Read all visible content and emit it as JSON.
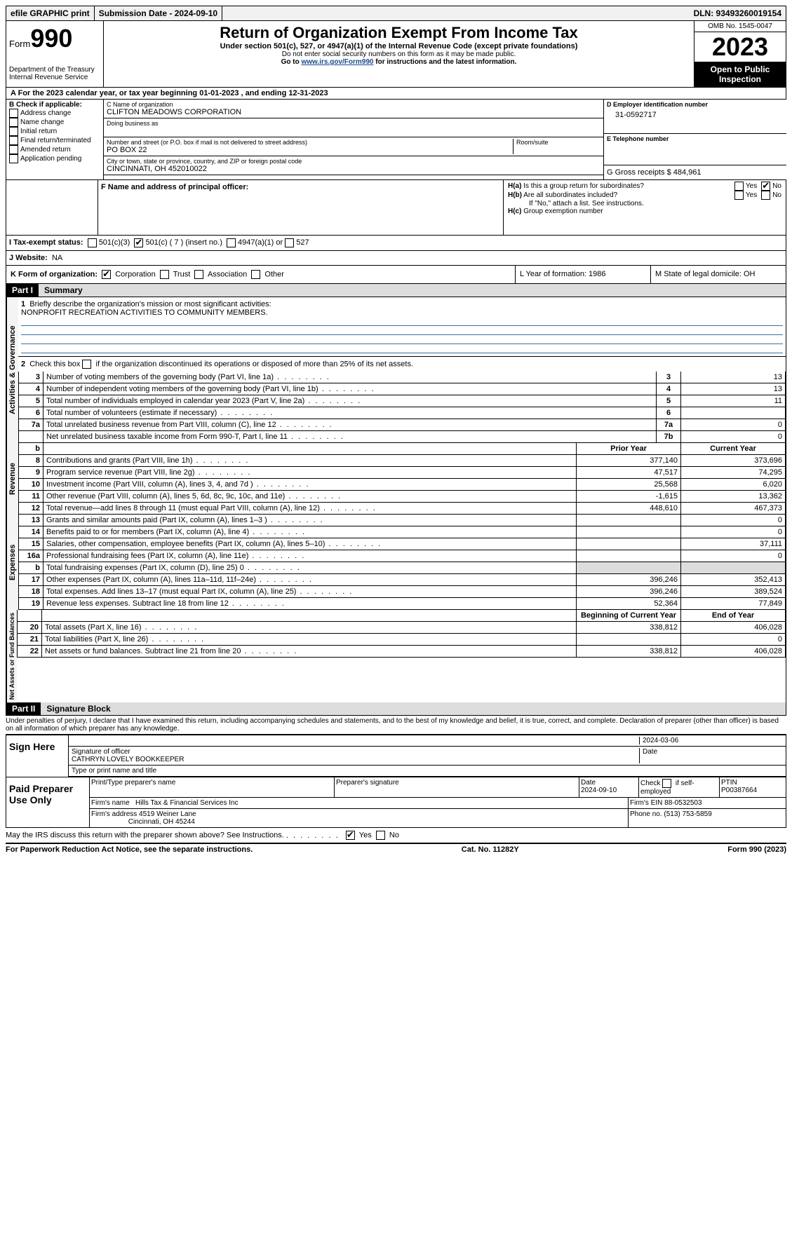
{
  "topbar": {
    "efile": "efile GRAPHIC print",
    "submission_label": "Submission Date - 2024-09-10",
    "dln_label": "DLN: 93493260019154"
  },
  "header": {
    "form_word": "Form",
    "form_num": "990",
    "dept": "Department of the Treasury",
    "irs": "Internal Revenue Service",
    "title": "Return of Organization Exempt From Income Tax",
    "sub1": "Under section 501(c), 527, or 4947(a)(1) of the Internal Revenue Code (except private foundations)",
    "sub2": "Do not enter social security numbers on this form as it may be made public.",
    "sub3_pre": "Go to ",
    "sub3_link": "www.irs.gov/Form990",
    "sub3_post": " for instructions and the latest information.",
    "omb": "OMB No. 1545-0047",
    "year": "2023",
    "open": "Open to Public Inspection"
  },
  "line_a": "For the 2023 calendar year, or tax year beginning 01-01-2023   , and ending 12-31-2023",
  "box_b": {
    "label": "B Check if applicable:",
    "opts": [
      "Address change",
      "Name change",
      "Initial return",
      "Final return/terminated",
      "Amended return",
      "Application pending"
    ]
  },
  "box_c": {
    "name_label": "C Name of organization",
    "name": "CLIFTON MEADOWS CORPORATION",
    "dba_label": "Doing business as",
    "addr_label": "Number and street (or P.O. box if mail is not delivered to street address)",
    "room_label": "Room/suite",
    "addr": "PO BOX 22",
    "city_label": "City or town, state or province, country, and ZIP or foreign postal code",
    "city": "CINCINNATI, OH  452010022"
  },
  "box_d": {
    "label": "D Employer identification number",
    "val": "31-0592717"
  },
  "box_e": {
    "label": "E Telephone number",
    "val": ""
  },
  "box_g": {
    "label": "G Gross receipts $ 484,961"
  },
  "box_f": {
    "label": "F  Name and address of principal officer:"
  },
  "box_h": {
    "a_label": "H(a)  Is this a group return for subordinates?",
    "b_label": "H(b)  Are all subordinates included?",
    "b_note": "If \"No,\" attach a list. See instructions.",
    "c_label": "H(c)  Group exemption number",
    "yes": "Yes",
    "no": "No"
  },
  "box_i": {
    "label": "I   Tax-exempt status:",
    "o1": "501(c)(3)",
    "o2": "501(c) ( 7 ) (insert no.)",
    "o3": "4947(a)(1) or",
    "o4": "527"
  },
  "box_j": {
    "label": "J   Website:",
    "val": "NA"
  },
  "box_k": {
    "label": "K Form of organization:",
    "o1": "Corporation",
    "o2": "Trust",
    "o3": "Association",
    "o4": "Other"
  },
  "box_l": {
    "label": "L Year of formation: 1986"
  },
  "box_m": {
    "label": "M State of legal domicile: OH"
  },
  "part1": {
    "num": "Part I",
    "title": "Summary"
  },
  "summary": {
    "l1_label": "Briefly describe the organization's mission or most significant activities:",
    "l1_text": "NONPROFIT RECREATION ACTIVITIES TO COMMUNITY MEMBERS.",
    "l2": "Check this box         if the organization discontinued its operations or disposed of more than 25% of its net assets.",
    "rows_gov": [
      {
        "n": "3",
        "d": "Number of voting members of the governing body (Part VI, line 1a)",
        "b": "3",
        "v": "13"
      },
      {
        "n": "4",
        "d": "Number of independent voting members of the governing body (Part VI, line 1b)",
        "b": "4",
        "v": "13"
      },
      {
        "n": "5",
        "d": "Total number of individuals employed in calendar year 2023 (Part V, line 2a)",
        "b": "5",
        "v": "11"
      },
      {
        "n": "6",
        "d": "Total number of volunteers (estimate if necessary)",
        "b": "6",
        "v": ""
      },
      {
        "n": "7a",
        "d": "Total unrelated business revenue from Part VIII, column (C), line 12",
        "b": "7a",
        "v": "0"
      },
      {
        "n": "",
        "d": "Net unrelated business taxable income from Form 990-T, Part I, line 11",
        "b": "7b",
        "v": "0"
      }
    ],
    "col_prior": "Prior Year",
    "col_curr": "Current Year",
    "rows_rev": [
      {
        "n": "8",
        "d": "Contributions and grants (Part VIII, line 1h)",
        "p": "377,140",
        "c": "373,696"
      },
      {
        "n": "9",
        "d": "Program service revenue (Part VIII, line 2g)",
        "p": "47,517",
        "c": "74,295"
      },
      {
        "n": "10",
        "d": "Investment income (Part VIII, column (A), lines 3, 4, and 7d )",
        "p": "25,568",
        "c": "6,020"
      },
      {
        "n": "11",
        "d": "Other revenue (Part VIII, column (A), lines 5, 6d, 8c, 9c, 10c, and 11e)",
        "p": "-1,615",
        "c": "13,362"
      },
      {
        "n": "12",
        "d": "Total revenue—add lines 8 through 11 (must equal Part VIII, column (A), line 12)",
        "p": "448,610",
        "c": "467,373"
      }
    ],
    "rows_exp": [
      {
        "n": "13",
        "d": "Grants and similar amounts paid (Part IX, column (A), lines 1–3 )",
        "p": "",
        "c": "0"
      },
      {
        "n": "14",
        "d": "Benefits paid to or for members (Part IX, column (A), line 4)",
        "p": "",
        "c": "0"
      },
      {
        "n": "15",
        "d": "Salaries, other compensation, employee benefits (Part IX, column (A), lines 5–10)",
        "p": "",
        "c": "37,111"
      },
      {
        "n": "16a",
        "d": "Professional fundraising fees (Part IX, column (A), line 11e)",
        "p": "",
        "c": "0"
      },
      {
        "n": "b",
        "d": "Total fundraising expenses (Part IX, column (D), line 25) 0",
        "p": "shade",
        "c": "shade"
      },
      {
        "n": "17",
        "d": "Other expenses (Part IX, column (A), lines 11a–11d, 11f–24e)",
        "p": "396,246",
        "c": "352,413"
      },
      {
        "n": "18",
        "d": "Total expenses. Add lines 13–17 (must equal Part IX, column (A), line 25)",
        "p": "396,246",
        "c": "389,524"
      },
      {
        "n": "19",
        "d": "Revenue less expenses. Subtract line 18 from line 12",
        "p": "52,364",
        "c": "77,849"
      }
    ],
    "col_beg": "Beginning of Current Year",
    "col_end": "End of Year",
    "rows_net": [
      {
        "n": "20",
        "d": "Total assets (Part X, line 16)",
        "p": "338,812",
        "c": "406,028"
      },
      {
        "n": "21",
        "d": "Total liabilities (Part X, line 26)",
        "p": "",
        "c": "0"
      },
      {
        "n": "22",
        "d": "Net assets or fund balances. Subtract line 21 from line 20",
        "p": "338,812",
        "c": "406,028"
      }
    ]
  },
  "side_labels": {
    "gov": "Activities & Governance",
    "rev": "Revenue",
    "exp": "Expenses",
    "net": "Net Assets or Fund Balances"
  },
  "part2": {
    "num": "Part II",
    "title": "Signature Block"
  },
  "penalties": "Under penalties of perjury, I declare that I have examined this return, including accompanying schedules and statements, and to the best of my knowledge and belief, it is true, correct, and complete. Declaration of preparer (other than officer) is based on all information of which preparer has any knowledge.",
  "sign": {
    "here": "Sign Here",
    "sig_label": "Signature of officer",
    "officer": "CATHRYN LOVELY BOOKKEEPER",
    "name_label": "Type or print name and title",
    "date_label": "Date",
    "date": "2024-03-06"
  },
  "paid": {
    "label": "Paid Preparer Use Only",
    "h1": "Print/Type preparer's name",
    "h2": "Preparer's signature",
    "h3": "Date",
    "date": "2024-09-10",
    "h4": "Check        if self-employed",
    "h5": "PTIN",
    "ptin": "P00387664",
    "firm_name_label": "Firm's name",
    "firm_name": "Hills Tax & Financial Services Inc",
    "firm_ein_label": "Firm's EIN",
    "firm_ein": "88-0532503",
    "firm_addr_label": "Firm's address",
    "firm_addr1": "4519 Weiner Lane",
    "firm_addr2": "Cincinnati, OH  45244",
    "phone_label": "Phone no.",
    "phone": "(513) 753-5859"
  },
  "discuss": {
    "q": "May the IRS discuss this return with the preparer shown above? See Instructions.",
    "yes": "Yes",
    "no": "No"
  },
  "footer": {
    "l": "For Paperwork Reduction Act Notice, see the separate instructions.",
    "m": "Cat. No. 11282Y",
    "r": "Form 990 (2023)"
  }
}
